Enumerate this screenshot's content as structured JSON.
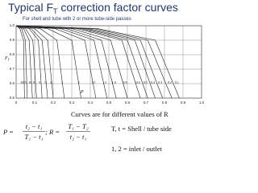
{
  "chart_data": {
    "type": "line",
    "title": [
      "Typical F",
      "T",
      " correction factor curves"
    ],
    "subtitle": "For shell and tube with 2 or more tube-side passes",
    "y_label": [
      "F",
      "T"
    ],
    "x_label": "P",
    "color": "#222222",
    "grid": true,
    "xlim": [
      0,
      1
    ],
    "ylim": [
      0.5,
      1
    ],
    "xticks": [
      0,
      0.1,
      0.2,
      0.3,
      0.4,
      0.5,
      0.6,
      0.7,
      0.8,
      0.9,
      {
        "value": 1,
        "label": "1.0"
      }
    ],
    "yticks": [
      0.5,
      0.6,
      0.7,
      0.8,
      0.9,
      {
        "value": 1,
        "label": "1.0"
      }
    ],
    "series": [
      {
        "name": "20",
        "x": [
          0,
          0.02,
          0.04,
          0.045
        ],
        "values": [
          1,
          0.98,
          0.9,
          0.5
        ]
      },
      {
        "name": "15",
        "x": [
          0,
          0.03,
          0.05,
          0.06
        ],
        "values": [
          1,
          0.98,
          0.9,
          0.5
        ]
      },
      {
        "name": "10",
        "x": [
          0,
          0.04,
          0.07,
          0.088
        ],
        "values": [
          1,
          0.98,
          0.9,
          0.5
        ]
      },
      {
        "name": "8",
        "x": [
          0,
          0.05,
          0.09,
          0.11
        ],
        "values": [
          1,
          0.98,
          0.9,
          0.5
        ]
      },
      {
        "name": "6",
        "x": [
          0,
          0.07,
          0.12,
          0.14
        ],
        "values": [
          1,
          0.98,
          0.9,
          0.5
        ]
      },
      {
        "name": "5",
        "x": [
          0,
          0.08,
          0.14,
          0.17
        ],
        "values": [
          1,
          0.98,
          0.9,
          0.5
        ]
      },
      {
        "name": "4",
        "x": [
          0,
          0.1,
          0.17,
          0.2
        ],
        "values": [
          1,
          0.98,
          0.9,
          0.5
        ]
      },
      {
        "name": "3",
        "x": [
          0,
          0.13,
          0.22,
          0.26
        ],
        "values": [
          1,
          0.98,
          0.9,
          0.5
        ]
      },
      {
        "name": "2",
        "x": [
          0,
          0.17,
          0.3,
          0.35
        ],
        "values": [
          1,
          0.98,
          0.9,
          0.5
        ]
      },
      {
        "name": "1.5",
        "x": [
          0,
          0.21,
          0.37,
          0.43
        ],
        "values": [
          1,
          0.98,
          0.9,
          0.5
        ]
      },
      {
        "name": "1.2",
        "x": [
          0,
          0.24,
          0.42,
          0.49
        ],
        "values": [
          1,
          0.98,
          0.9,
          0.5
        ]
      },
      {
        "name": "1.0",
        "x": [
          0,
          0.27,
          0.46,
          0.54
        ],
        "values": [
          1,
          0.98,
          0.9,
          0.5
        ]
      },
      {
        "name": "0.8",
        "x": [
          0,
          0.3,
          0.51,
          0.6
        ],
        "values": [
          1,
          0.98,
          0.9,
          0.5
        ]
      },
      {
        "name": "0.6",
        "x": [
          0,
          0.33,
          0.57,
          0.67
        ],
        "values": [
          1,
          0.98,
          0.9,
          0.5
        ]
      },
      {
        "name": "0.5",
        "x": [
          0,
          0.35,
          0.6,
          0.71
        ],
        "values": [
          1,
          0.98,
          0.9,
          0.5
        ]
      },
      {
        "name": "0.4",
        "x": [
          0,
          0.37,
          0.64,
          0.75
        ],
        "values": [
          1,
          0.98,
          0.9,
          0.5
        ]
      },
      {
        "name": "0.3",
        "x": [
          0,
          0.39,
          0.67,
          0.79
        ],
        "values": [
          1,
          0.98,
          0.9,
          0.5
        ]
      },
      {
        "name": "0.2",
        "x": [
          0,
          0.42,
          0.71,
          0.84
        ],
        "values": [
          1,
          0.98,
          0.9,
          0.5
        ]
      },
      {
        "name": "0.1",
        "x": [
          0,
          0.44,
          0.75,
          0.88
        ],
        "values": [
          1,
          0.98,
          0.9,
          0.5
        ]
      }
    ],
    "note": "Curves are for different values of R",
    "formula": {
      "p_lhs": "P =",
      "p_num": "t₂ − t₁",
      "p_den": "T₁ − t₁",
      "r_lhs": "; R =",
      "r_num": "T₁ − T₂",
      "r_den": "t₂ − t₁"
    },
    "legend_lines": [
      "T, t = Shell / tube side",
      "1, 2 = inlet / outlet"
    ]
  }
}
